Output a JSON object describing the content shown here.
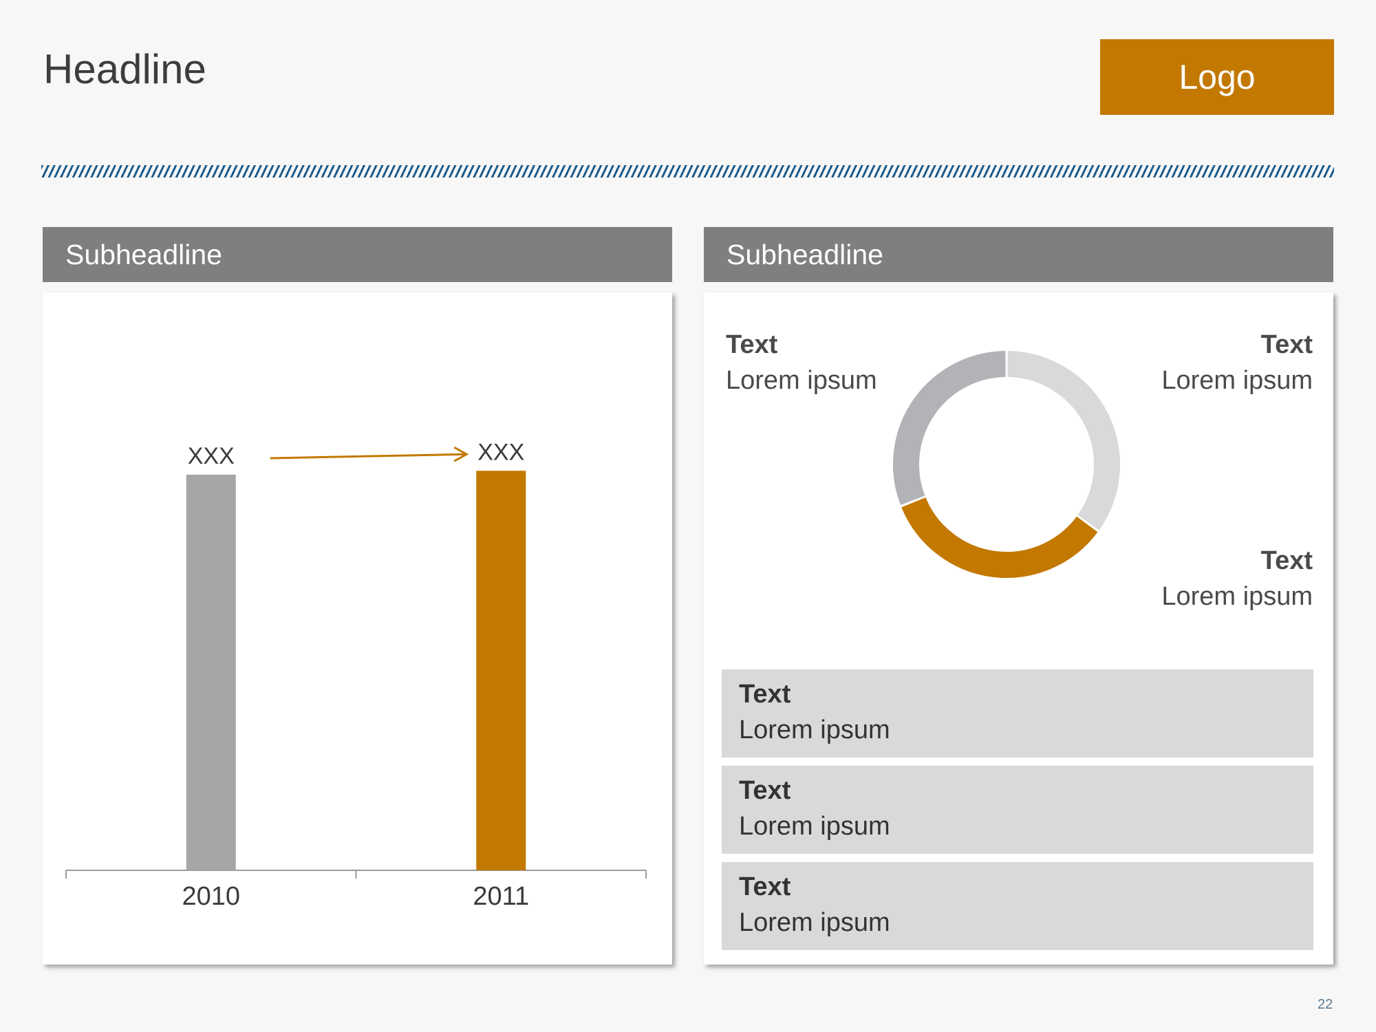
{
  "headline": "Headline",
  "logo": "Logo",
  "left_panel": {
    "subheadline": "Subheadline"
  },
  "right_panel": {
    "subheadline": "Subheadline",
    "donut_labels": [
      {
        "title": "Text",
        "text": "Lorem ipsum"
      },
      {
        "title": "Text",
        "text": "Lorem ipsum"
      },
      {
        "title": "Text",
        "text": "Lorem ipsum"
      }
    ],
    "boxes": [
      {
        "title": "Text",
        "text": "Lorem ipsum"
      },
      {
        "title": "Text",
        "text": "Lorem ipsum"
      },
      {
        "title": "Text",
        "text": "Lorem ipsum"
      }
    ]
  },
  "page_number": "22",
  "colors": {
    "accent": "#c37800",
    "bar_gray": "#a6a6a6",
    "header_gray": "#7f7f7f",
    "stripe_blue": "#1d5c8c",
    "donut_light": "#d9d9d9",
    "donut_mid": "#b1b3b6"
  },
  "chart_data": [
    {
      "type": "bar",
      "categories": [
        "2010",
        "2011"
      ],
      "values": [
        100,
        101
      ],
      "data_labels": [
        "XXX",
        "XXX"
      ],
      "bar_colors": [
        "#a6a6a6",
        "#c37800"
      ],
      "annotation": "arrow from 2010 label to 2011 label",
      "grid": false,
      "legend": "none"
    },
    {
      "type": "pie",
      "style": "donut",
      "slices": [
        {
          "value": 35,
          "color": "#d9d9d9"
        },
        {
          "value": 34,
          "color": "#c37800"
        },
        {
          "value": 31,
          "color": "#b1b3b6"
        }
      ]
    }
  ]
}
